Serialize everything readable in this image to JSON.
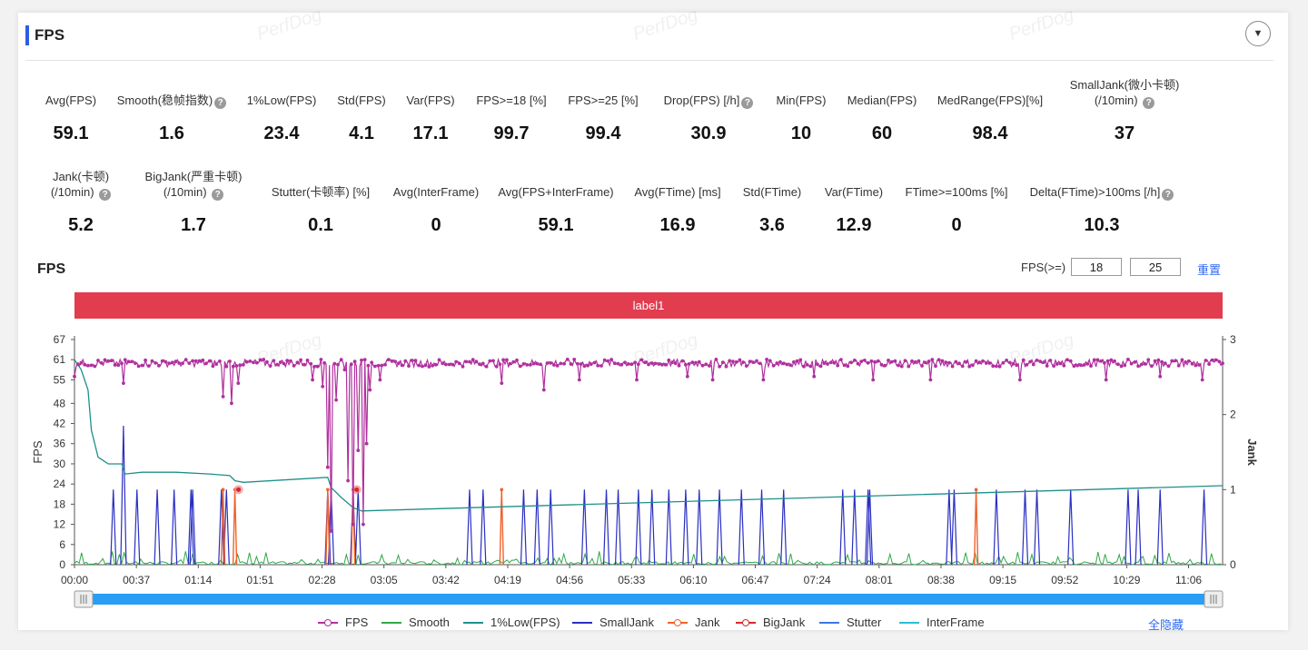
{
  "panel": {
    "title": "FPS",
    "watermark": "PerfDog"
  },
  "metrics_row1": [
    {
      "label": "Avg(FPS)",
      "value": "59.1",
      "help": false
    },
    {
      "label": "Smooth(稳帧指数)",
      "value": "1.6",
      "help": true
    },
    {
      "label": "1%Low(FPS)",
      "value": "23.4",
      "help": false
    },
    {
      "label": "Std(FPS)",
      "value": "4.1",
      "help": false
    },
    {
      "label": "Var(FPS)",
      "value": "17.1",
      "help": false
    },
    {
      "label": "FPS>=18 [%]",
      "value": "99.7",
      "help": false
    },
    {
      "label": "FPS>=25 [%]",
      "value": "99.4",
      "help": false
    },
    {
      "label": "Drop(FPS) [/h]",
      "value": "30.9",
      "help": true
    },
    {
      "label": "Min(FPS)",
      "value": "10",
      "help": false
    },
    {
      "label": "Median(FPS)",
      "value": "60",
      "help": false
    },
    {
      "label": "MedRange(FPS)[%]",
      "value": "98.4",
      "help": false
    },
    {
      "label": "SmallJank(微小卡顿)",
      "label2": "(/10min)",
      "value": "37",
      "help": true
    }
  ],
  "metrics_row2": [
    {
      "label": "Jank(卡顿)",
      "label2": "(/10min)",
      "value": "5.2",
      "help": true
    },
    {
      "label": "BigJank(严重卡顿)",
      "label2": "(/10min)",
      "value": "1.7",
      "help": true
    },
    {
      "label": "Stutter(卡顿率) [%]",
      "value": "0.1",
      "help": false
    },
    {
      "label": "Avg(InterFrame)",
      "value": "0",
      "help": false
    },
    {
      "label": "Avg(FPS+InterFrame)",
      "value": "59.1",
      "help": false
    },
    {
      "label": "Avg(FTime) [ms]",
      "value": "16.9",
      "help": false
    },
    {
      "label": "Std(FTime)",
      "value": "3.6",
      "help": false
    },
    {
      "label": "Var(FTime)",
      "value": "12.9",
      "help": false
    },
    {
      "label": "FTime>=100ms [%]",
      "value": "0",
      "help": false
    },
    {
      "label": "Delta(FTime)>100ms [/h]",
      "value": "10.3",
      "help": true
    }
  ],
  "chart_controls": {
    "title": "FPS",
    "threshold_label": "FPS(>=)",
    "threshold_low": "18",
    "threshold_high": "25",
    "reset_label": "重置",
    "band_label": "label1"
  },
  "legend": {
    "items": [
      {
        "name": "FPS",
        "color": "#b0309e",
        "dot": true
      },
      {
        "name": "Smooth",
        "color": "#2fa84a",
        "dot": false
      },
      {
        "name": "1%Low(FPS)",
        "color": "#1d8f8a",
        "dot": false
      },
      {
        "name": "SmallJank",
        "color": "#2a2fc2",
        "dot": false
      },
      {
        "name": "Jank",
        "color": "#f0622a",
        "dot": true
      },
      {
        "name": "BigJank",
        "color": "#d42a2a",
        "dot": true
      },
      {
        "name": "Stutter",
        "color": "#3e76e6",
        "dot": false
      },
      {
        "name": "InterFrame",
        "color": "#2bbfd6",
        "dot": false
      }
    ],
    "hide_all_label": "全隐藏"
  },
  "chart_data": {
    "type": "line",
    "ylabel": "FPS",
    "y2label": "Jank",
    "y_ticks": [
      0,
      6,
      12,
      18,
      24,
      30,
      36,
      42,
      48,
      55,
      61,
      67
    ],
    "y2_ticks": [
      0,
      1,
      2,
      3
    ],
    "ylim": [
      0,
      67
    ],
    "y2lim": [
      0,
      3
    ],
    "x_ticks": [
      "00:00",
      "00:37",
      "01:14",
      "01:51",
      "02:28",
      "03:05",
      "03:42",
      "04:19",
      "04:56",
      "05:33",
      "06:10",
      "06:47",
      "07:24",
      "08:01",
      "08:38",
      "09:15",
      "09:52",
      "10:29",
      "11:06"
    ],
    "duration_seconds": 680,
    "fps_baseline": 60,
    "fps_dips": [
      {
        "t": 0,
        "v": 56
      },
      {
        "t": 29,
        "v": 54
      },
      {
        "t": 88,
        "v": 50
      },
      {
        "t": 93,
        "v": 48
      },
      {
        "t": 97,
        "v": 54
      },
      {
        "t": 141,
        "v": 55
      },
      {
        "t": 147,
        "v": 53
      },
      {
        "t": 150,
        "v": 29
      },
      {
        "t": 152,
        "v": 10
      },
      {
        "t": 155,
        "v": 49
      },
      {
        "t": 158,
        "v": 61
      },
      {
        "t": 160,
        "v": 58
      },
      {
        "t": 162,
        "v": 25
      },
      {
        "t": 165,
        "v": 12
      },
      {
        "t": 168,
        "v": 34
      },
      {
        "t": 171,
        "v": 12
      },
      {
        "t": 173,
        "v": 36
      },
      {
        "t": 175,
        "v": 52
      },
      {
        "t": 181,
        "v": 55
      },
      {
        "t": 253,
        "v": 54
      },
      {
        "t": 278,
        "v": 52
      },
      {
        "t": 299,
        "v": 55
      },
      {
        "t": 333,
        "v": 55
      },
      {
        "t": 363,
        "v": 56
      },
      {
        "t": 378,
        "v": 55
      },
      {
        "t": 408,
        "v": 55
      },
      {
        "t": 438,
        "v": 56
      },
      {
        "t": 473,
        "v": 55
      },
      {
        "t": 507,
        "v": 55
      },
      {
        "t": 560,
        "v": 55
      },
      {
        "t": 611,
        "v": 55
      },
      {
        "t": 643,
        "v": 56
      },
      {
        "t": 668,
        "v": 55
      }
    ],
    "low1_series": {
      "t": [
        0,
        4,
        8,
        10,
        14,
        20,
        28,
        30,
        40,
        60,
        80,
        92,
        95,
        100,
        150,
        152,
        158,
        165,
        170,
        680
      ],
      "v": [
        61,
        58,
        52,
        40,
        32,
        30,
        30,
        27,
        27.5,
        27.5,
        27,
        26.5,
        25,
        24.5,
        26,
        23,
        20,
        17,
        16,
        23.5
      ]
    },
    "small_jank_times": [
      23,
      29,
      37,
      49,
      59,
      69,
      70,
      87,
      90,
      150,
      152,
      165,
      168,
      234,
      242,
      266,
      274,
      282,
      302,
      315,
      322,
      334,
      342,
      352,
      362,
      370,
      382,
      395,
      407,
      420,
      455,
      462,
      470,
      471,
      518,
      521,
      546,
      563,
      570,
      590,
      624,
      630,
      643,
      669
    ],
    "small_jank_tall": {
      "t": 29,
      "v": 1.85
    },
    "jank_times": [
      88,
      95,
      150,
      165,
      253,
      534
    ],
    "big_jank_times": [
      95,
      165
    ]
  }
}
